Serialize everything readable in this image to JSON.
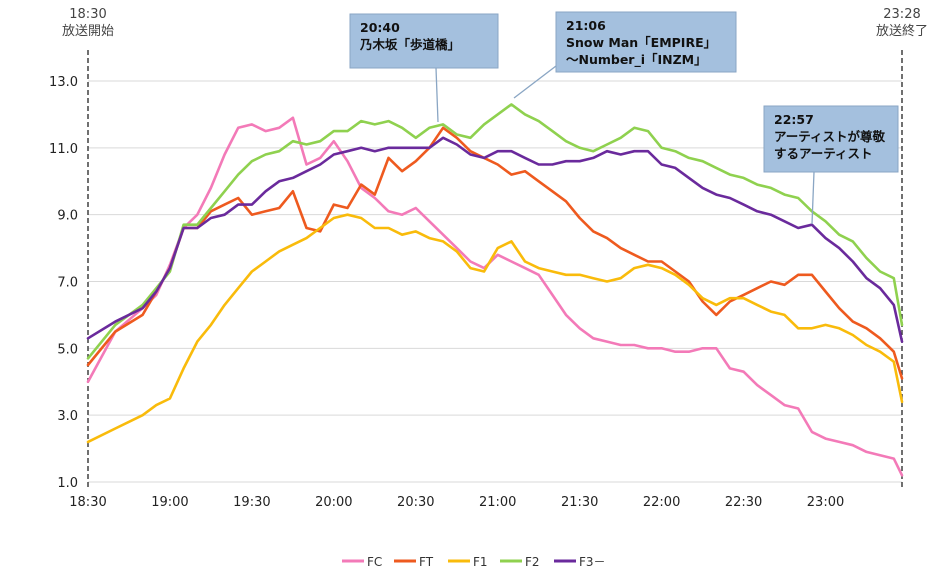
{
  "chart_data": {
    "type": "line",
    "xlim": [
      "18:30",
      "23:28"
    ],
    "ylim": [
      1.0,
      13.0
    ],
    "y_ticks": [
      "1.0",
      "3.0",
      "5.0",
      "7.0",
      "9.0",
      "11.0",
      "13.0"
    ],
    "x_ticks": [
      "18:30",
      "19:00",
      "19:30",
      "20:00",
      "20:30",
      "21:00",
      "21:30",
      "22:00",
      "22:30",
      "23:00"
    ],
    "grid": "horizontal",
    "legend_position": "bottom",
    "markers": [
      {
        "time": "18:30",
        "label": "放送開始"
      },
      {
        "time": "23:28",
        "label": "放送終了"
      }
    ],
    "annotations": [
      {
        "time": "20:40",
        "lines": [
          "20:40",
          "乃木坂「歩道橋」"
        ]
      },
      {
        "time": "21:06",
        "lines": [
          "21:06",
          "Snow Man「EMPIRE」",
          "〜Number_i「INZM」"
        ]
      },
      {
        "time": "22:57",
        "lines": [
          "22:57",
          "アーティストが尊敬",
          "するアーティスト"
        ]
      }
    ],
    "x_times": [
      "18:30",
      "18:40",
      "18:50",
      "18:55",
      "19:00",
      "19:05",
      "19:10",
      "19:15",
      "19:20",
      "19:25",
      "19:30",
      "19:35",
      "19:40",
      "19:45",
      "19:50",
      "19:55",
      "20:00",
      "20:05",
      "20:10",
      "20:15",
      "20:20",
      "20:25",
      "20:30",
      "20:35",
      "20:40",
      "20:45",
      "20:50",
      "20:55",
      "21:00",
      "21:05",
      "21:10",
      "21:15",
      "21:20",
      "21:25",
      "21:30",
      "21:35",
      "21:40",
      "21:45",
      "21:50",
      "21:55",
      "22:00",
      "22:05",
      "22:10",
      "22:15",
      "22:20",
      "22:25",
      "22:30",
      "22:35",
      "22:40",
      "22:45",
      "22:50",
      "22:55",
      "23:00",
      "23:05",
      "23:10",
      "23:15",
      "23:20",
      "23:25",
      "23:28"
    ],
    "series": [
      {
        "name": "FC",
        "color": "#f37ab8",
        "values": [
          4.0,
          5.5,
          6.2,
          6.6,
          7.5,
          8.6,
          9.0,
          9.8,
          10.8,
          11.6,
          11.7,
          11.5,
          11.6,
          11.9,
          10.5,
          10.7,
          11.2,
          10.6,
          9.8,
          9.5,
          9.1,
          9.0,
          9.2,
          8.8,
          8.4,
          8.0,
          7.6,
          7.4,
          7.8,
          7.6,
          7.4,
          7.2,
          6.6,
          6.0,
          5.6,
          5.3,
          5.2,
          5.1,
          5.1,
          5.0,
          5.0,
          4.9,
          4.9,
          5.0,
          5.0,
          4.4,
          4.3,
          3.9,
          3.6,
          3.3,
          3.2,
          2.5,
          2.3,
          2.2,
          2.1,
          1.9,
          1.8,
          1.7,
          1.2
        ]
      },
      {
        "name": "FT",
        "color": "#ee5a1f",
        "values": [
          4.5,
          5.5,
          6.0,
          6.7,
          7.4,
          8.6,
          8.6,
          9.1,
          9.3,
          9.5,
          9.0,
          9.1,
          9.2,
          9.7,
          8.6,
          8.5,
          9.3,
          9.2,
          9.9,
          9.6,
          10.7,
          10.3,
          10.6,
          11.0,
          11.6,
          11.3,
          10.9,
          10.7,
          10.5,
          10.2,
          10.3,
          10.0,
          9.7,
          9.4,
          8.9,
          8.5,
          8.3,
          8.0,
          7.8,
          7.6,
          7.6,
          7.3,
          7.0,
          6.4,
          6.0,
          6.4,
          6.6,
          6.8,
          7.0,
          6.9,
          7.2,
          7.2,
          6.7,
          6.2,
          5.8,
          5.6,
          5.3,
          4.9,
          4.1
        ]
      },
      {
        "name": "F1",
        "color": "#f9bb0b",
        "values": [
          2.2,
          2.6,
          3.0,
          3.3,
          3.5,
          4.4,
          5.2,
          5.7,
          6.3,
          6.8,
          7.3,
          7.6,
          7.9,
          8.1,
          8.3,
          8.6,
          8.9,
          9.0,
          8.9,
          8.6,
          8.6,
          8.4,
          8.5,
          8.3,
          8.2,
          7.9,
          7.4,
          7.3,
          8.0,
          8.2,
          7.6,
          7.4,
          7.3,
          7.2,
          7.2,
          7.1,
          7.0,
          7.1,
          7.4,
          7.5,
          7.4,
          7.2,
          6.9,
          6.5,
          6.3,
          6.5,
          6.5,
          6.3,
          6.1,
          6.0,
          5.6,
          5.6,
          5.7,
          5.6,
          5.4,
          5.1,
          4.9,
          4.6,
          3.4
        ]
      },
      {
        "name": "F2",
        "color": "#8fd14f",
        "values": [
          4.7,
          5.7,
          6.3,
          6.8,
          7.3,
          8.7,
          8.7,
          9.2,
          9.7,
          10.2,
          10.6,
          10.8,
          10.9,
          11.2,
          11.1,
          11.2,
          11.5,
          11.5,
          11.8,
          11.7,
          11.8,
          11.6,
          11.3,
          11.6,
          11.7,
          11.4,
          11.3,
          11.7,
          12.0,
          12.3,
          12.0,
          11.8,
          11.5,
          11.2,
          11.0,
          10.9,
          11.1,
          11.3,
          11.6,
          11.5,
          11.0,
          10.9,
          10.7,
          10.6,
          10.4,
          10.2,
          10.1,
          9.9,
          9.8,
          9.6,
          9.5,
          9.1,
          8.8,
          8.4,
          8.2,
          7.7,
          7.3,
          7.1,
          5.7
        ]
      },
      {
        "name": "F3－",
        "color": "#6a2a9c",
        "values": [
          5.3,
          5.8,
          6.2,
          6.7,
          7.4,
          8.6,
          8.6,
          8.9,
          9.0,
          9.3,
          9.3,
          9.7,
          10.0,
          10.1,
          10.3,
          10.5,
          10.8,
          10.9,
          11.0,
          10.9,
          11.0,
          11.0,
          11.0,
          11.0,
          11.3,
          11.1,
          10.8,
          10.7,
          10.9,
          10.9,
          10.7,
          10.5,
          10.5,
          10.6,
          10.6,
          10.7,
          10.9,
          10.8,
          10.9,
          10.9,
          10.5,
          10.4,
          10.1,
          9.8,
          9.6,
          9.5,
          9.3,
          9.1,
          9.0,
          8.8,
          8.6,
          8.7,
          8.3,
          8.0,
          7.6,
          7.1,
          6.8,
          6.3,
          5.2
        ]
      }
    ]
  }
}
